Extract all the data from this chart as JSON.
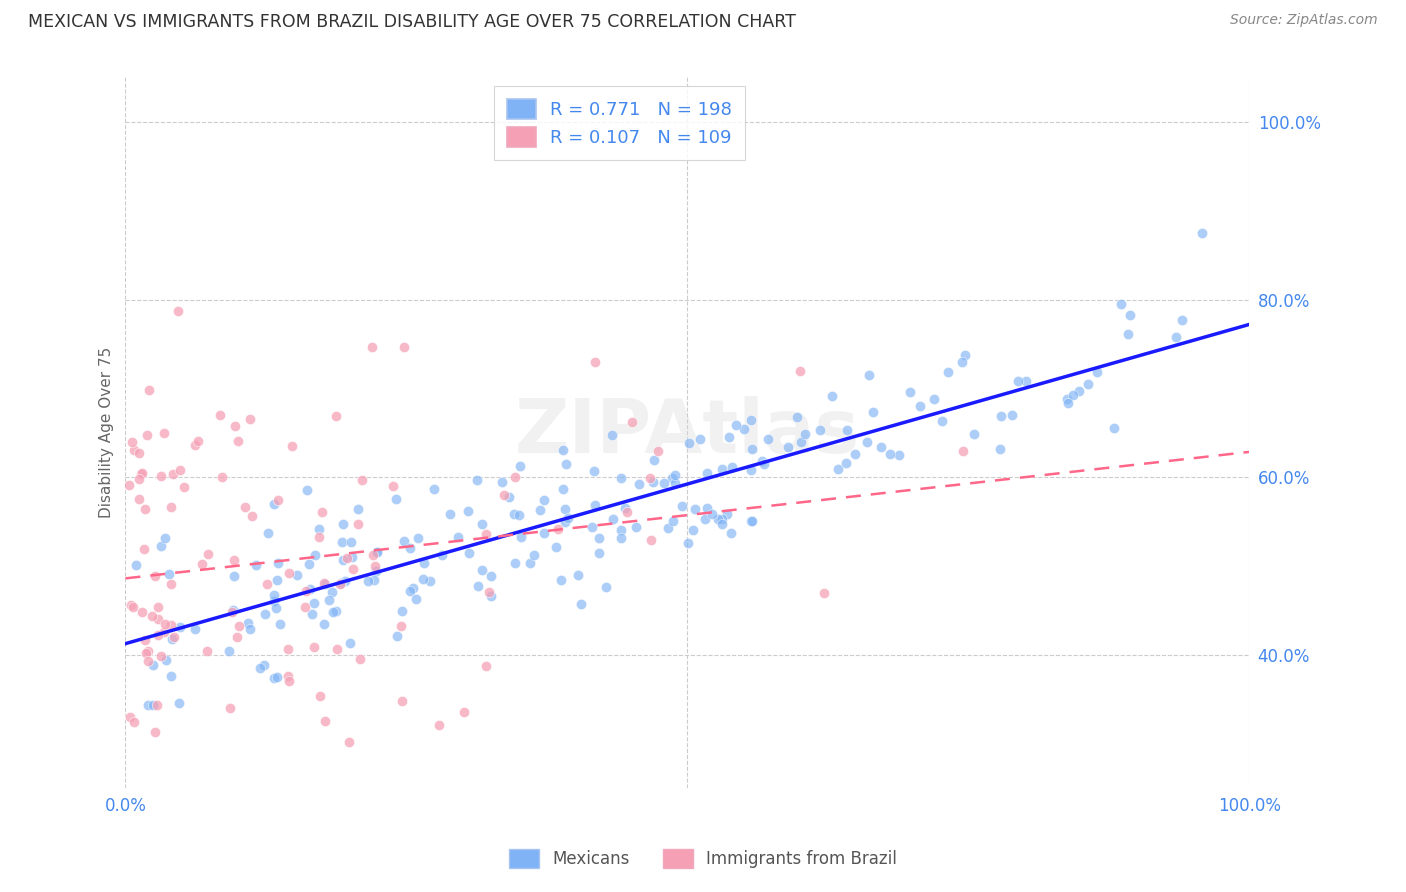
{
  "title": "MEXICAN VS IMMIGRANTS FROM BRAZIL DISABILITY AGE OVER 75 CORRELATION CHART",
  "source": "Source: ZipAtlas.com",
  "ylabel": "Disability Age Over 75",
  "xlim": [
    0,
    1
  ],
  "ymin": 0.25,
  "ymax": 1.05,
  "background_color": "#ffffff",
  "grid_color": "#cccccc",
  "watermark": "ZIPAtlas",
  "legend_R_blue": "0.771",
  "legend_N_blue": "198",
  "legend_R_pink": "0.107",
  "legend_N_pink": "109",
  "blue_color": "#7fb3f5",
  "pink_color": "#f5a0b5",
  "blue_line_color": "#1a1aff",
  "pink_line_color": "#ff6688",
  "title_color": "#333333",
  "axis_label_color": "#4488ee",
  "bottom_legend_blue": "Mexicans",
  "bottom_legend_pink": "Immigrants from Brazil",
  "blue_scatter_seed": 42,
  "pink_scatter_seed": 77,
  "blue_n": 198,
  "pink_n": 109,
  "blue_R": 0.771,
  "pink_R": 0.107
}
